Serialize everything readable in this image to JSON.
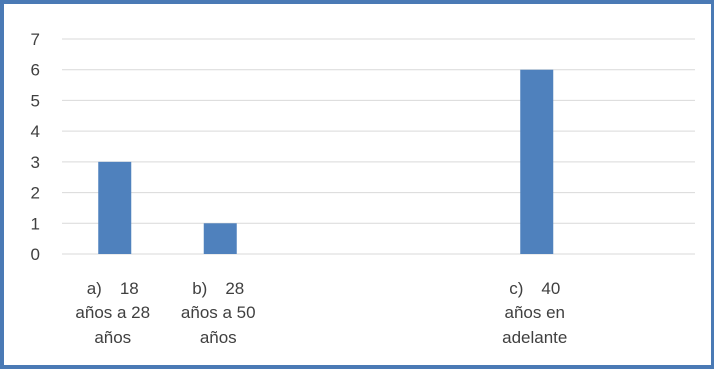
{
  "chart_data": {
    "type": "bar",
    "title": "",
    "xlabel": "",
    "ylabel": "",
    "ylim": [
      0,
      7
    ],
    "yticks": [
      0,
      1,
      2,
      3,
      4,
      5,
      6,
      7
    ],
    "grid": true,
    "legend": "none",
    "categories": [
      [
        "a)",
        "18",
        "años a 28",
        "años"
      ],
      [
        "b)",
        "28",
        "años a 50",
        "años"
      ],
      [
        "",
        "",
        "",
        ""
      ],
      [
        "",
        "",
        "",
        ""
      ],
      [
        "c)",
        "40",
        "años en",
        "adelante"
      ],
      [
        "",
        "",
        "",
        ""
      ]
    ],
    "values": [
      3,
      1,
      0,
      0,
      6,
      0
    ],
    "bar_color": "#4f81bd",
    "grid_color": "#d9d9d9",
    "border_color": "#4a7ab5"
  }
}
